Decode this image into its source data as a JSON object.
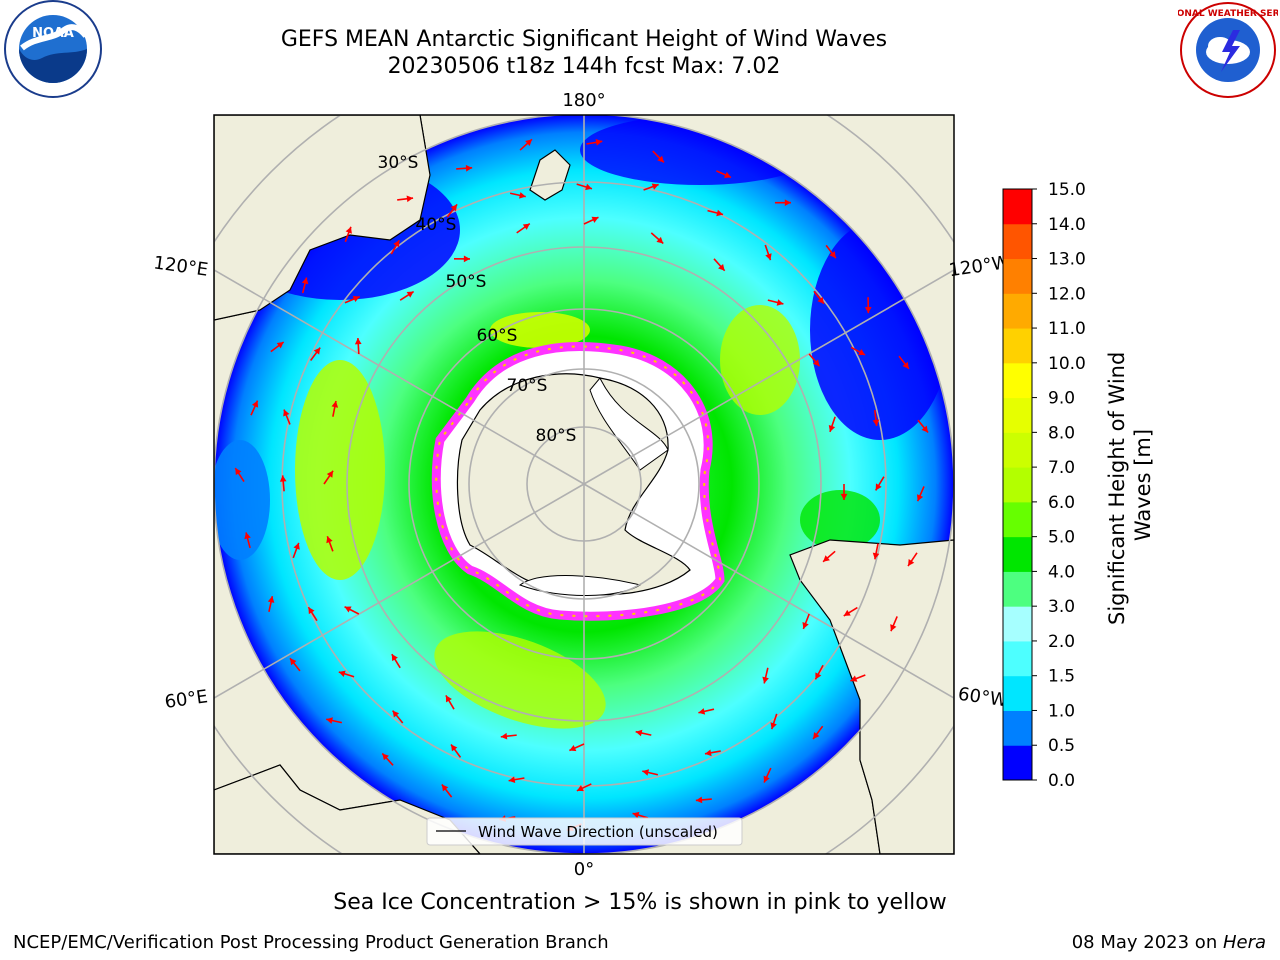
{
  "header": {
    "title_line1": "GEFS MEAN Antarctic Significant Height of Wind Waves",
    "title_line2": "20230506 t18z 144h fcst   Max: 7.02"
  },
  "map": {
    "projection": "south polar stereographic",
    "longitude_labels": [
      "180°",
      "120°E",
      "120°W",
      "60°E",
      "60°W",
      "0°"
    ],
    "latitude_labels": [
      "30°S",
      "40°S",
      "50°S",
      "60°S",
      "70°S",
      "80°S"
    ],
    "legend_label": "Wind Wave Direction (unscaled)",
    "arrow_color": "#ff0000",
    "land_color": "#efeedc",
    "sea_ice_colors": [
      "#ff33ff",
      "#ffcc00"
    ]
  },
  "colorbar": {
    "label": "Significant Height of Wind Waves [m]",
    "ticks": [
      "0.0",
      "0.5",
      "1.0",
      "1.5",
      "2.0",
      "3.0",
      "4.0",
      "5.0",
      "6.0",
      "7.0",
      "8.0",
      "9.0",
      "10.0",
      "11.0",
      "12.0",
      "13.0",
      "14.0",
      "15.0"
    ],
    "colors": [
      "#0000ff",
      "#0080ff",
      "#00e6ff",
      "#4dffff",
      "#a6ffff",
      "#4dff80",
      "#00e600",
      "#66ff00",
      "#b3ff00",
      "#ccff00",
      "#e6ff00",
      "#ffff00",
      "#ffd100",
      "#ffaa00",
      "#ff8000",
      "#ff5500",
      "#ff0000"
    ]
  },
  "caption": "Sea Ice Concentration > 15% is shown in pink to yellow",
  "footer": {
    "left": "NCEP/EMC/Verification Post Processing Product Generation Branch",
    "date": "08 May 2023 on ",
    "host": "Hera"
  },
  "logos": {
    "left_text": "NOAA",
    "right_text": "NATIONAL WEATHER SERVICE"
  }
}
